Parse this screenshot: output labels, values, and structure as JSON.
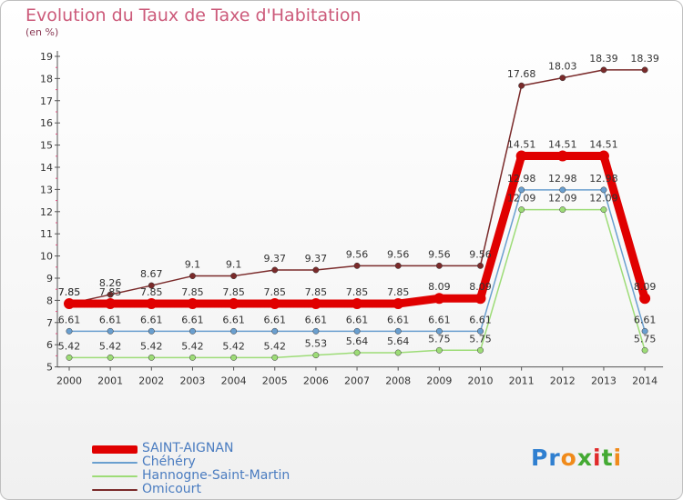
{
  "title": "Evolution du Taux de Taxe d'Habitation",
  "unit_label": "(en %)",
  "logo": {
    "text": "Proxiti",
    "letter_colors": [
      "#2f7fd0",
      "#2f7fd0",
      "#f08a1a",
      "#44aa33",
      "#e02a2a",
      "#44aa33",
      "#f08a1a"
    ]
  },
  "chart_data": {
    "type": "line",
    "x": [
      "2000",
      "2001",
      "2002",
      "2003",
      "2004",
      "2005",
      "2006",
      "2007",
      "2008",
      "2009",
      "2010",
      "2011",
      "2012",
      "2013",
      "2014"
    ],
    "ylim": [
      5,
      19
    ],
    "yticks": [
      "5",
      "6",
      "7",
      "8",
      "9",
      "10",
      "11",
      "12",
      "13",
      "14",
      "15",
      "16",
      "17",
      "18",
      "19"
    ],
    "grid": false,
    "series": [
      {
        "name": "SAINT-AIGNAN",
        "color": "#e00000",
        "values": [
          7.85,
          7.85,
          7.85,
          7.85,
          7.85,
          7.85,
          7.85,
          7.85,
          7.85,
          8.09,
          8.09,
          14.51,
          14.51,
          14.51,
          8.09
        ],
        "labels": [
          "7.85",
          "7.85",
          "7.85",
          "7.85",
          "7.85",
          "7.85",
          "7.85",
          "7.85",
          "7.85",
          "8.09",
          "8.09",
          "14.51",
          "14.51",
          "14.51",
          "8.09"
        ]
      },
      {
        "name": "Chéhéry",
        "color": "#6a9fcf",
        "values": [
          6.61,
          6.61,
          6.61,
          6.61,
          6.61,
          6.61,
          6.61,
          6.61,
          6.61,
          6.61,
          6.61,
          12.98,
          12.98,
          12.98,
          6.61
        ],
        "labels": [
          "6.61",
          "6.61",
          "6.61",
          "6.61",
          "6.61",
          "6.61",
          "6.61",
          "6.61",
          "6.61",
          "6.61",
          "6.61",
          "12.98",
          "12.98",
          "12.98",
          "6.61"
        ]
      },
      {
        "name": "Hannogne-Saint-Martin",
        "color": "#9ddc77",
        "values": [
          5.42,
          5.42,
          5.42,
          5.42,
          5.42,
          5.42,
          5.53,
          5.64,
          5.64,
          5.75,
          5.75,
          12.09,
          12.09,
          12.09,
          5.75
        ],
        "labels": [
          "5.42",
          "5.42",
          "5.42",
          "5.42",
          "5.42",
          "5.42",
          "5.53",
          "5.64",
          "5.64",
          "5.75",
          "5.75",
          "12.09",
          "12.09",
          "12.09",
          "5.75"
        ]
      },
      {
        "name": "Omicourt",
        "color": "#7a2a2a",
        "values": [
          7.85,
          8.26,
          8.67,
          9.1,
          9.1,
          9.37,
          9.37,
          9.56,
          9.56,
          9.56,
          9.56,
          17.68,
          18.03,
          18.39,
          18.39
        ],
        "labels": [
          "7.85",
          "8.26",
          "8.67",
          "9.1",
          "9.1",
          "9.37",
          "9.37",
          "9.56",
          "9.56",
          "9.56",
          "9.56",
          "17.68",
          "18.03",
          "18.39",
          "18.39"
        ]
      }
    ]
  }
}
